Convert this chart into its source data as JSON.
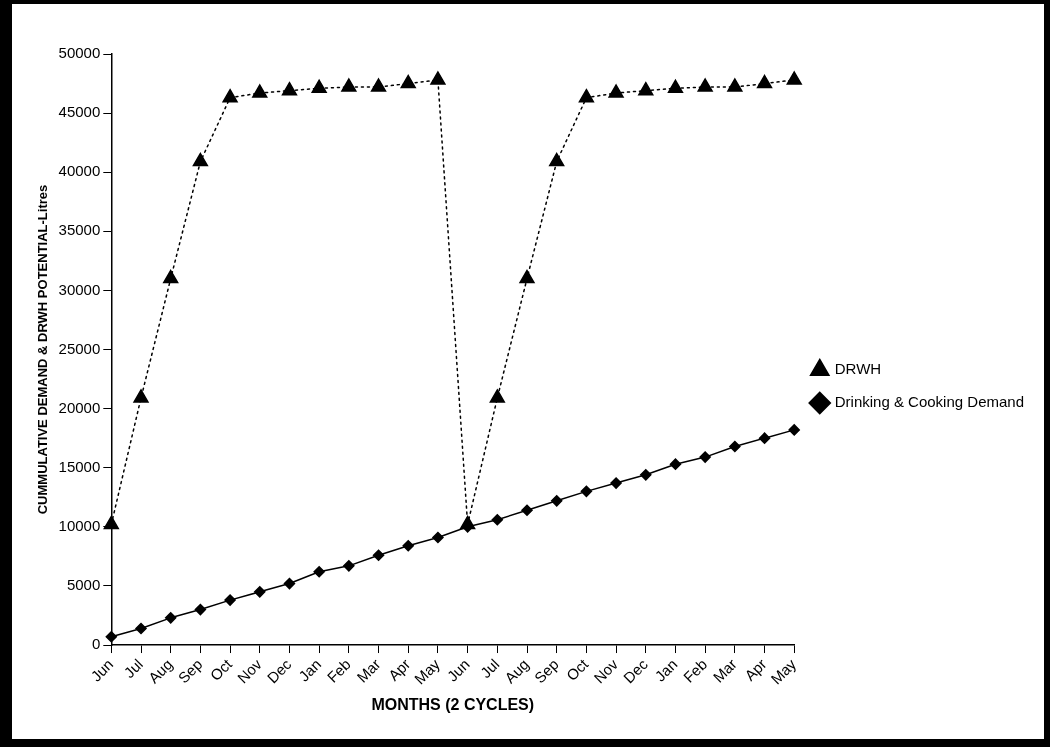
{
  "chart_data": {
    "type": "line",
    "xlabel": "MONTHS (2 CYCLES)",
    "ylabel": "CUMMULATIVE DEMAND & DRWH POTENTIAL-Litres",
    "categories": [
      "Jun",
      "Jul",
      "Aug",
      "Sep",
      "Oct",
      "Nov",
      "Dec",
      "Jan",
      "Feb",
      "Mar",
      "Apr",
      "May",
      "Jun",
      "Jul",
      "Aug",
      "Sep",
      "Oct",
      "Nov",
      "Dec",
      "Jan",
      "Feb",
      "Mar",
      "Apr",
      "May"
    ],
    "series": [
      {
        "name": "Drinking & Cooking Demand",
        "color": "#000000",
        "marker": "diamond",
        "line_style": "solid",
        "values": [
          700,
          1400,
          2300,
          3000,
          3800,
          4500,
          5200,
          6200,
          6700,
          7600,
          8400,
          9100,
          10000,
          10600,
          11400,
          12200,
          13000,
          13700,
          14400,
          15300,
          15900,
          16800,
          17500,
          18200
        ]
      },
      {
        "name": "DRWH",
        "color": "#000000",
        "marker": "triangle",
        "line_style": "dotted",
        "values": [
          10200,
          20900,
          31000,
          40900,
          46300,
          46700,
          46900,
          47100,
          47200,
          47200,
          47500,
          47800,
          10200,
          20900,
          31000,
          40900,
          46300,
          46700,
          46900,
          47100,
          47200,
          47200,
          47500,
          47800
        ]
      }
    ],
    "ylim": [
      0,
      50000
    ],
    "yticks": [
      0,
      5000,
      10000,
      15000,
      20000,
      25000,
      30000,
      35000,
      40000,
      45000,
      50000
    ],
    "grid": false,
    "legend": "right"
  }
}
